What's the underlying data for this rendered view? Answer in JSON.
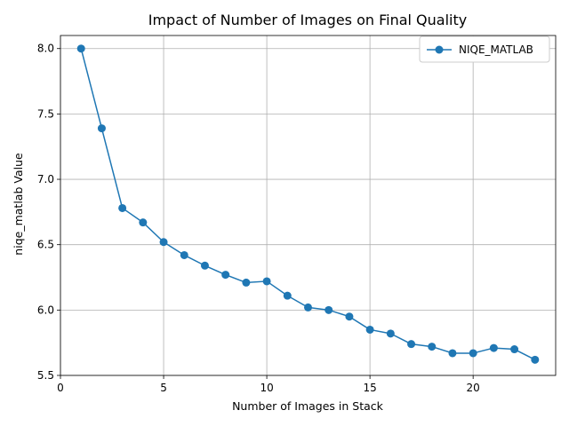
{
  "chart_data": {
    "type": "line",
    "title": "Impact of Number of Images on Final Quality",
    "xlabel": "Number of Images in Stack",
    "ylabel": "niqe_matlab Value",
    "xlim": [
      0,
      24
    ],
    "ylim": [
      5.5,
      8.1
    ],
    "xticks": [
      "0",
      "5",
      "10",
      "15",
      "20"
    ],
    "xtick_values": [
      0,
      5,
      10,
      15,
      20
    ],
    "yticks": [
      "5.5",
      "6.0",
      "6.5",
      "7.0",
      "7.5",
      "8.0"
    ],
    "ytick_values": [
      5.5,
      6.0,
      6.5,
      7.0,
      7.5,
      8.0
    ],
    "grid": true,
    "legend_position": "top-right",
    "series": [
      {
        "name": "NIQE_MATLAB",
        "color": "#1f77b4",
        "marker": "circle",
        "x": [
          1,
          2,
          3,
          4,
          5,
          6,
          7,
          8,
          9,
          10,
          11,
          12,
          13,
          14,
          15,
          16,
          17,
          18,
          19,
          20,
          21,
          22,
          23
        ],
        "y": [
          8.0,
          7.39,
          6.78,
          6.67,
          6.52,
          6.42,
          6.34,
          6.27,
          6.21,
          6.22,
          6.11,
          6.02,
          6.0,
          5.95,
          5.85,
          5.82,
          5.74,
          5.72,
          5.67,
          5.67,
          5.71,
          5.7,
          5.62
        ]
      }
    ]
  }
}
